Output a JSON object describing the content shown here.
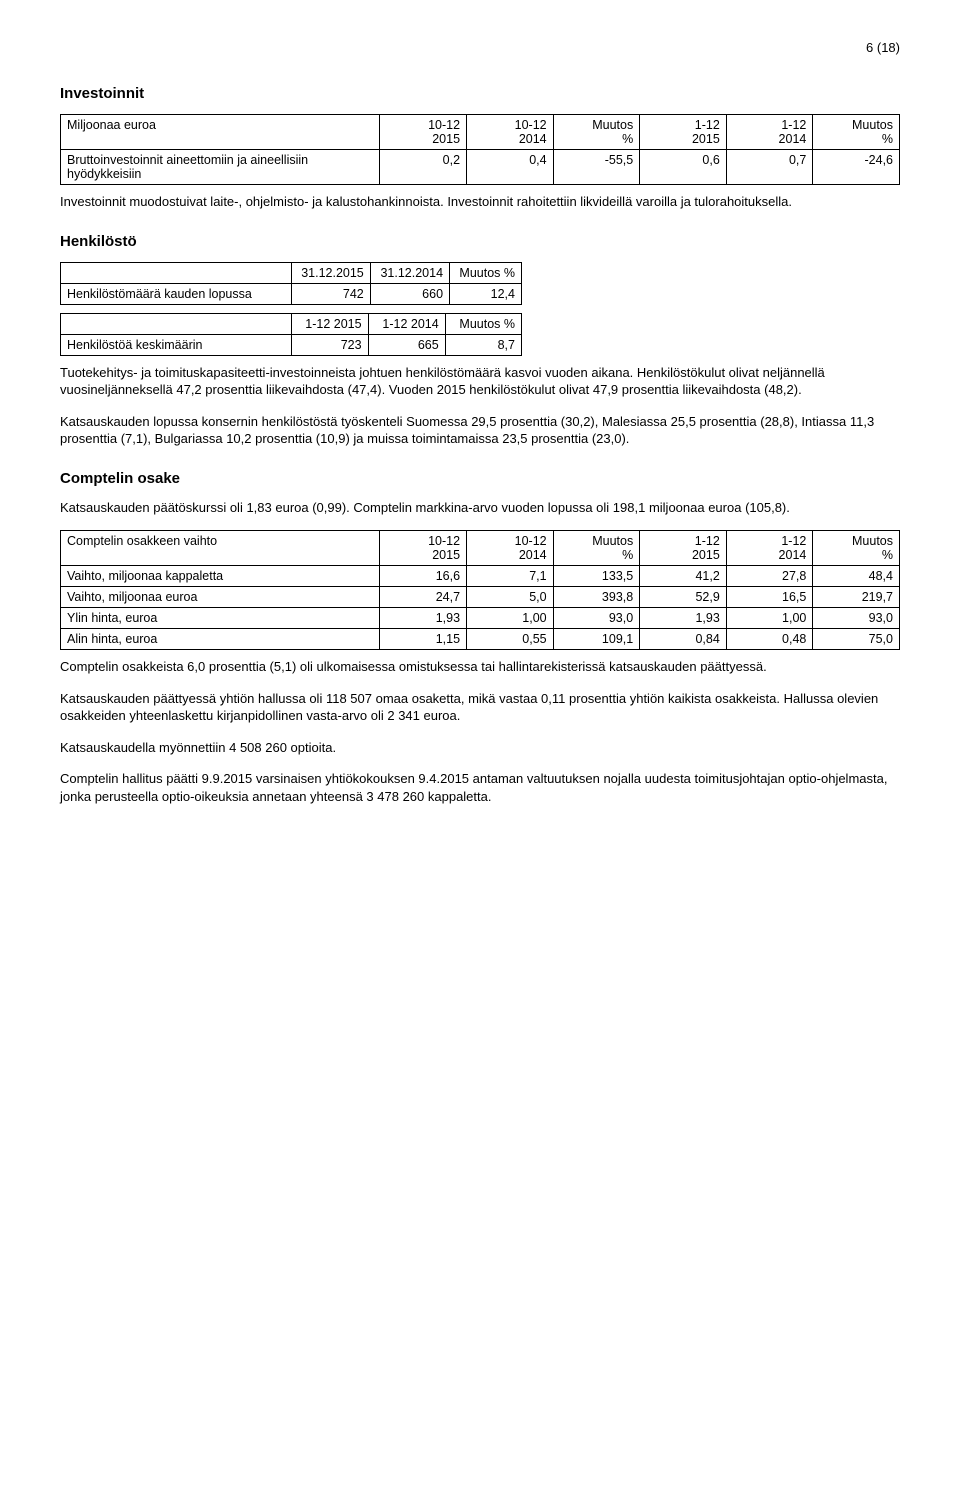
{
  "page_number": "6 (18)",
  "investoinnit": {
    "heading": "Investoinnit",
    "headers": [
      "Miljoonaa euroa",
      "10-12\n2015",
      "10-12\n2014",
      "Muutos\n%",
      "1-12\n2015",
      "1-12\n2014",
      "Muutos\n%"
    ],
    "row_label": "Bruttoinvestoinnit aineettomiin ja aineellisiin hyödykkeisiin",
    "row_values": [
      "0,2",
      "0,4",
      "-55,5",
      "0,6",
      "0,7",
      "-24,6"
    ],
    "para": "Investoinnit muodostuivat laite-, ohjelmisto- ja kalustohankinnoista. Investoinnit rahoitettiin likvideillä varoilla ja tulorahoituksella."
  },
  "henkilosto": {
    "heading": "Henkilöstö",
    "t1_headers": [
      "",
      "31.12.2015",
      "31.12.2014",
      "Muutos %"
    ],
    "t1_label": "Henkilöstömäärä kauden lopussa",
    "t1_values": [
      "742",
      "660",
      "12,4"
    ],
    "t2_headers": [
      "",
      "1-12 2015",
      "1-12 2014",
      "Muutos %"
    ],
    "t2_label": "Henkilöstöä keskimäärin",
    "t2_values": [
      "723",
      "665",
      "8,7"
    ],
    "para1": "Tuotekehitys- ja toimituskapasiteetti-investoinneista johtuen henkilöstömäärä kasvoi vuoden aikana. Henkilöstökulut olivat neljännellä vuosineljänneksellä 47,2 prosenttia liikevaihdosta (47,4). Vuoden 2015 henkilöstökulut olivat 47,9 prosenttia liikevaihdosta (48,2).",
    "para2": "Katsauskauden lopussa konsernin henkilöstöstä työskenteli Suomessa 29,5 prosenttia (30,2), Malesiassa 25,5 prosenttia (28,8), Intiassa 11,3 prosenttia (7,1), Bulgariassa 10,2 prosenttia (10,9) ja muissa toimintamaissa 23,5 prosenttia (23,0)."
  },
  "osake": {
    "heading": "Comptelin osake",
    "intro": "Katsauskauden päätöskurssi oli 1,83 euroa (0,99). Comptelin markkina-arvo vuoden lopussa oli 198,1 miljoonaa euroa (105,8).",
    "headers": [
      "Comptelin osakkeen vaihto",
      "10-12\n2015",
      "10-12\n2014",
      "Muutos\n%",
      "1-12\n2015",
      "1-12\n2014",
      "Muutos\n%"
    ],
    "rows": [
      {
        "label": "Vaihto, miljoonaa kappaletta",
        "v": [
          "16,6",
          "7,1",
          "133,5",
          "41,2",
          "27,8",
          "48,4"
        ]
      },
      {
        "label": "Vaihto, miljoonaa euroa",
        "v": [
          "24,7",
          "5,0",
          "393,8",
          "52,9",
          "16,5",
          "219,7"
        ]
      },
      {
        "label": "Ylin hinta, euroa",
        "v": [
          "1,93",
          "1,00",
          "93,0",
          "1,93",
          "1,00",
          "93,0"
        ]
      },
      {
        "label": "Alin hinta, euroa",
        "v": [
          "1,15",
          "0,55",
          "109,1",
          "0,84",
          "0,48",
          "75,0"
        ]
      }
    ],
    "para1": "Comptelin osakkeista 6,0 prosenttia (5,1) oli ulkomaisessa omistuksessa tai hallintarekisterissä katsauskauden päättyessä.",
    "para2": "Katsauskauden päättyessä yhtiön hallussa oli 118 507 omaa osaketta, mikä vastaa 0,11 prosenttia yhtiön kaikista osakkeista. Hallussa olevien osakkeiden yhteenlaskettu kirjanpidollinen vasta-arvo oli 2 341 euroa.",
    "para3": "Katsauskaudella myönnettiin 4 508 260 optioita.",
    "para4": "Comptelin hallitus päätti 9.9.2015 varsinaisen yhtiökokouksen 9.4.2015 antaman valtuutuksen nojalla uudesta toimitusjohtajan optio-ohjelmasta, jonka perusteella optio-oikeuksia annetaan yhteensä 3 478 260 kappaletta."
  }
}
